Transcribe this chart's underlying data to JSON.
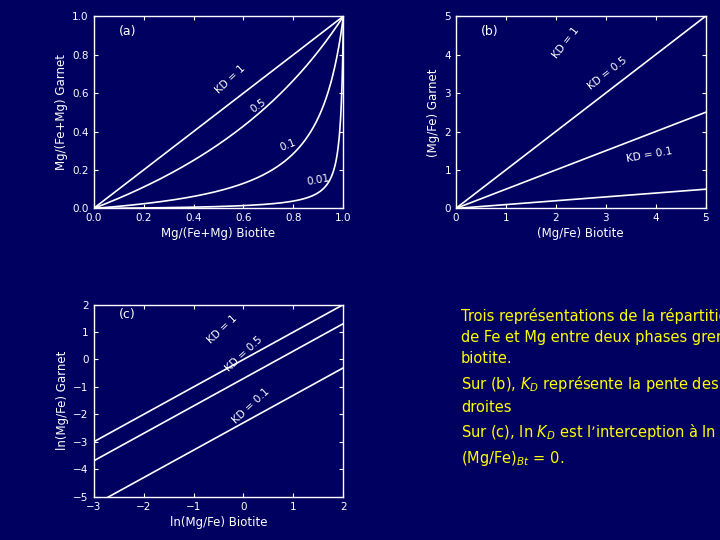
{
  "bg_color": "#000060",
  "plot_bg_color": "#000060",
  "line_color": "white",
  "text_color": "white",
  "label_color": "#FFFF00",
  "panel_a": {
    "label": "(a)",
    "xlabel": "Mg/(Fe+Mg) Biotite",
    "ylabel": "Mg/(Fe+Mg) Garnet",
    "xlim": [
      0,
      1.0
    ],
    "ylim": [
      0,
      1.0
    ],
    "xticks": [
      0,
      0.2,
      0.4,
      0.6,
      0.8,
      1.0
    ],
    "yticks": [
      0,
      0.2,
      0.4,
      0.6,
      0.8,
      1.0
    ],
    "KD_values": [
      1.0,
      0.5,
      0.1,
      0.01
    ]
  },
  "panel_b": {
    "label": "(b)",
    "xlabel": "(Mg/Fe) Biotite",
    "ylabel": "(Mg/Fe) Garnet",
    "xlim": [
      0,
      5.0
    ],
    "ylim": [
      0,
      5.0
    ],
    "xticks": [
      0,
      1.0,
      2.0,
      3.0,
      4.0,
      5.0
    ],
    "yticks": [
      0,
      1.0,
      2.0,
      3.0,
      4.0,
      5.0
    ],
    "KD_values": [
      1.0,
      0.5,
      0.1
    ]
  },
  "panel_c": {
    "label": "(c)",
    "xlabel": "ln(Mg/Fe) Biotite",
    "ylabel": "ln(Mg/Fe) Garnet",
    "xlim": [
      -3.0,
      2.0
    ],
    "ylim": [
      -5.0,
      2.0
    ],
    "xticks": [
      -3.0,
      -2.0,
      -1.0,
      0,
      1.0,
      2.0
    ],
    "yticks": [
      -5.0,
      -4.0,
      -3.0,
      -2.0,
      -1.0,
      0.0,
      1.0,
      2.0
    ],
    "KD_values": [
      1.0,
      0.5,
      0.1
    ]
  },
  "text_color_yellow": "#FFFF00",
  "text_fontsize": 10.5
}
